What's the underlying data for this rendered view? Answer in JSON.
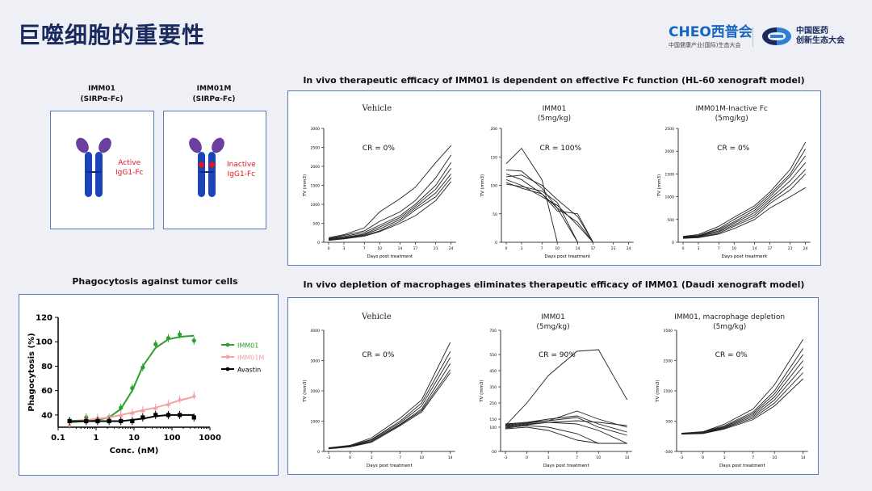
{
  "slide": {
    "title": "巨噬细胞的重要性",
    "logo_cheo": {
      "brand": "CHEO西普会",
      "subtitle": "中国健康产业(国际)生态大会"
    },
    "logo_partner": {
      "line1": "中国医药",
      "line2": "创新生态大会"
    }
  },
  "antibodies": [
    {
      "name": "IMM01",
      "format": "(SIRPα-Fc)",
      "label_line1": "Active",
      "label_line2": "IgG1-Fc"
    },
    {
      "name": "IMM01M",
      "format": "(SIRPα-Fc)",
      "label_line1": "Inactive",
      "label_line2": "IgG1-Fc"
    }
  ],
  "colors": {
    "panel_border": "#5b7bb8",
    "antibody_body": "#1a44b8",
    "antibody_tip": "#6a3fa0",
    "label_red": "#e8141c",
    "imm01": "#2ca02c",
    "imm01m": "#f4a3a3",
    "avastin": "#000000"
  },
  "phagocytosis": {
    "heading": "Phagocytosis against tumor cells",
    "chart_data": {
      "type": "scatter",
      "xlabel": "Conc. (nM)",
      "ylabel": "Phagocytosis (%)",
      "x_scale": "log",
      "xlim": [
        0.1,
        1000
      ],
      "ylim": [
        30,
        120
      ],
      "x_ticks": [
        "0.1",
        "1",
        "10",
        "100",
        "1000"
      ],
      "y_ticks": [
        "40",
        "60",
        "80",
        "100",
        "120"
      ],
      "legend_position": "right",
      "series": [
        {
          "name": "IMM01",
          "x": [
            0.2,
            0.55,
            1.1,
            2.2,
            4.5,
            9,
            17,
            37,
            80,
            160,
            380
          ],
          "y": [
            35,
            38,
            37,
            38,
            46,
            62,
            79,
            98,
            103,
            106,
            101
          ],
          "fit": [
            34,
            35,
            36,
            38,
            45,
            60,
            80,
            95,
            102,
            104,
            105
          ]
        },
        {
          "name": "IMM01M",
          "x": [
            0.2,
            0.55,
            1.1,
            2.2,
            4.5,
            9,
            17,
            37,
            80,
            160,
            380
          ],
          "y": [
            32,
            37,
            38,
            38,
            40,
            42,
            44,
            46,
            49,
            53,
            56
          ],
          "fit": [
            35,
            36,
            37,
            38,
            40,
            42,
            44,
            46,
            49,
            52,
            55
          ]
        },
        {
          "name": "Avastin",
          "x": [
            0.2,
            0.55,
            1.1,
            2.2,
            4.5,
            9,
            17,
            37,
            80,
            160,
            380
          ],
          "y": [
            35,
            35,
            35,
            35,
            35,
            35,
            38,
            40,
            40,
            40,
            38
          ],
          "fit": [
            35,
            35,
            35,
            35,
            35,
            36,
            37,
            39,
            40,
            40,
            40
          ]
        }
      ]
    }
  },
  "xenograft_hl60": {
    "heading": "In vivo therapeutic efficacy of IMM01 is dependent on effective Fc function (HL-60 xenograft model)",
    "charts": [
      {
        "title_line1": "Vehicle",
        "title_line2": "",
        "cr": "CR = 0%",
        "chart_data": {
          "type": "line",
          "ylabel": "TV (mm3)",
          "xlabel": "Days post treatment",
          "x": [
            0,
            3,
            7,
            10,
            14,
            17,
            21,
            24
          ],
          "y_ticks": [
            "0",
            "500",
            "1000",
            "1500",
            "2000",
            "2500",
            "3000"
          ],
          "ylim": [
            0,
            3000
          ],
          "series": [
            {
              "values": [
                120,
                200,
                380,
                800,
                1150,
                1450,
                2100,
                2550
              ]
            },
            {
              "values": [
                100,
                180,
                300,
                550,
                800,
                1100,
                1700,
                2300
              ]
            },
            {
              "values": [
                90,
                150,
                260,
                450,
                700,
                1000,
                1500,
                2100
              ]
            },
            {
              "values": [
                80,
                130,
                220,
                400,
                650,
                950,
                1400,
                1950
              ]
            },
            {
              "values": [
                70,
                110,
                200,
                350,
                600,
                900,
                1300,
                1800
              ]
            },
            {
              "values": [
                60,
                100,
                180,
                300,
                550,
                850,
                1200,
                1700
              ]
            },
            {
              "values": [
                50,
                90,
                160,
                280,
                500,
                700,
                1100,
                1600
              ]
            }
          ]
        }
      },
      {
        "title_line1": "IMM01",
        "title_line2": "(5mg/kg)",
        "cr": "CR = 100%",
        "chart_data": {
          "type": "line",
          "ylabel": "TV (mm3)",
          "xlabel": "Days post treatment",
          "x": [
            0,
            3,
            7,
            10,
            14,
            17,
            21,
            24
          ],
          "y_ticks": [
            "0",
            "50",
            "100",
            "150",
            "200"
          ],
          "ylim": [
            0,
            200
          ],
          "series": [
            {
              "values": [
                138,
                165,
                110,
                0,
                null,
                null,
                null,
                null
              ]
            },
            {
              "values": [
                127,
                125,
                95,
                60,
                0,
                null,
                null,
                null
              ]
            },
            {
              "values": [
                120,
                110,
                85,
                55,
                50,
                0,
                null,
                null
              ]
            },
            {
              "values": [
                115,
                118,
                100,
                75,
                45,
                0,
                null,
                null
              ]
            },
            {
              "values": [
                110,
                100,
                80,
                65,
                30,
                0,
                null,
                null
              ]
            },
            {
              "values": [
                105,
                95,
                85,
                60,
                35,
                0,
                null,
                null
              ]
            },
            {
              "values": [
                102,
                98,
                90,
                70,
                0,
                null,
                null,
                null
              ]
            }
          ]
        }
      },
      {
        "title_line1": "IMM01M-Inactive Fc",
        "title_line2": "(5mg/kg)",
        "cr": "CR = 0%",
        "chart_data": {
          "type": "line",
          "ylabel": "TV (mm3)",
          "xlabel": "Days post treatment",
          "x": [
            0,
            3,
            7,
            10,
            14,
            17,
            21,
            24
          ],
          "y_ticks": [
            "0",
            "500",
            "1000",
            "1500",
            "2000",
            "2500"
          ],
          "ylim": [
            0,
            2500
          ],
          "series": [
            {
              "values": [
                130,
                170,
                350,
                550,
                800,
                1100,
                1600,
                2200
              ]
            },
            {
              "values": [
                120,
                150,
                300,
                500,
                750,
                1050,
                1500,
                2050
              ]
            },
            {
              "values": [
                110,
                140,
                280,
                450,
                700,
                1000,
                1450,
                1900
              ]
            },
            {
              "values": [
                100,
                130,
                250,
                420,
                650,
                950,
                1350,
                1750
              ]
            },
            {
              "values": [
                95,
                120,
                230,
                380,
                600,
                900,
                1250,
                1600
              ]
            },
            {
              "values": [
                90,
                110,
                200,
                350,
                550,
                850,
                1150,
                1500
              ]
            },
            {
              "values": [
                85,
                100,
                180,
                300,
                500,
                750,
                1000,
                1200
              ]
            }
          ]
        }
      }
    ]
  },
  "xenograft_daudi": {
    "heading": "In vivo depletion of macrophages eliminates therapeutic efficacy of IMM01 (Daudi xenograft model)",
    "charts": [
      {
        "title_line1": "Vehicle",
        "title_line2": "",
        "cr": "CR = 0%",
        "chart_data": {
          "type": "line",
          "ylabel": "TV (mm3)",
          "xlabel": "Days post treatment",
          "x": [
            -3,
            0,
            3,
            7,
            10,
            14
          ],
          "y_ticks": [
            "0",
            "1000",
            "2000",
            "3000",
            "4000"
          ],
          "ylim": [
            0,
            4000
          ],
          "series": [
            {
              "values": [
                120,
                200,
                450,
                1100,
                1700,
                3600
              ]
            },
            {
              "values": [
                110,
                190,
                400,
                1000,
                1600,
                3300
              ]
            },
            {
              "values": [
                100,
                180,
                380,
                950,
                1500,
                3100
              ]
            },
            {
              "values": [
                95,
                170,
                350,
                900,
                1400,
                2900
              ]
            },
            {
              "values": [
                90,
                160,
                330,
                880,
                1350,
                2700
              ]
            },
            {
              "values": [
                85,
                150,
                300,
                850,
                1300,
                2600
              ]
            }
          ]
        }
      },
      {
        "title_line1": "IMM01",
        "title_line2": "(5mg/kg)",
        "cr": "CR = 90%",
        "chart_data": {
          "type": "line",
          "ylabel": "TV (mm3)",
          "xlabel": "Days post treatment",
          "x": [
            -3,
            0,
            3,
            7,
            10,
            14
          ],
          "y_ticks": [
            "-50",
            "100",
            "150",
            "250",
            "350",
            "450",
            "550",
            "700"
          ],
          "ylim": [
            -50,
            700
          ],
          "series": [
            {
              "values": [
                110,
                250,
                420,
                570,
                580,
                270
              ]
            },
            {
              "values": [
                120,
                130,
                150,
                170,
                120,
                70
              ]
            },
            {
              "values": [
                115,
                130,
                140,
                200,
                150,
                100
              ]
            },
            {
              "values": [
                110,
                125,
                140,
                160,
                100,
                50
              ]
            },
            {
              "values": [
                100,
                115,
                130,
                120,
                80,
                0
              ]
            },
            {
              "values": [
                95,
                110,
                100,
                60,
                0,
                0
              ]
            },
            {
              "values": [
                105,
                120,
                130,
                140,
                130,
                110
              ]
            },
            {
              "values": [
                90,
                100,
                80,
                20,
                0,
                0
              ]
            }
          ]
        }
      },
      {
        "title_line1": "IMM01, macrophage depletion",
        "title_line2": "(5mg/kg)",
        "cr": "CR = 0%",
        "chart_data": {
          "type": "line",
          "ylabel": "TV (mm3)",
          "xlabel": "Days post treatment",
          "x": [
            -3,
            0,
            3,
            7,
            10,
            14
          ],
          "y_ticks": [
            "-500",
            "500",
            "1500",
            "2500",
            "3500"
          ],
          "ylim": [
            -500,
            3500
          ],
          "series": [
            {
              "values": [
                100,
                150,
                400,
                900,
                1700,
                3200
              ]
            },
            {
              "values": [
                95,
                140,
                350,
                800,
                1500,
                2900
              ]
            },
            {
              "values": [
                90,
                130,
                320,
                750,
                1400,
                2700
              ]
            },
            {
              "values": [
                85,
                120,
                300,
                700,
                1300,
                2500
              ]
            },
            {
              "values": [
                80,
                110,
                280,
                650,
                1200,
                2300
              ]
            },
            {
              "values": [
                75,
                100,
                260,
                600,
                1100,
                2100
              ]
            },
            {
              "values": [
                70,
                90,
                240,
                550,
                1000,
                1900
              ]
            }
          ]
        }
      }
    ]
  }
}
